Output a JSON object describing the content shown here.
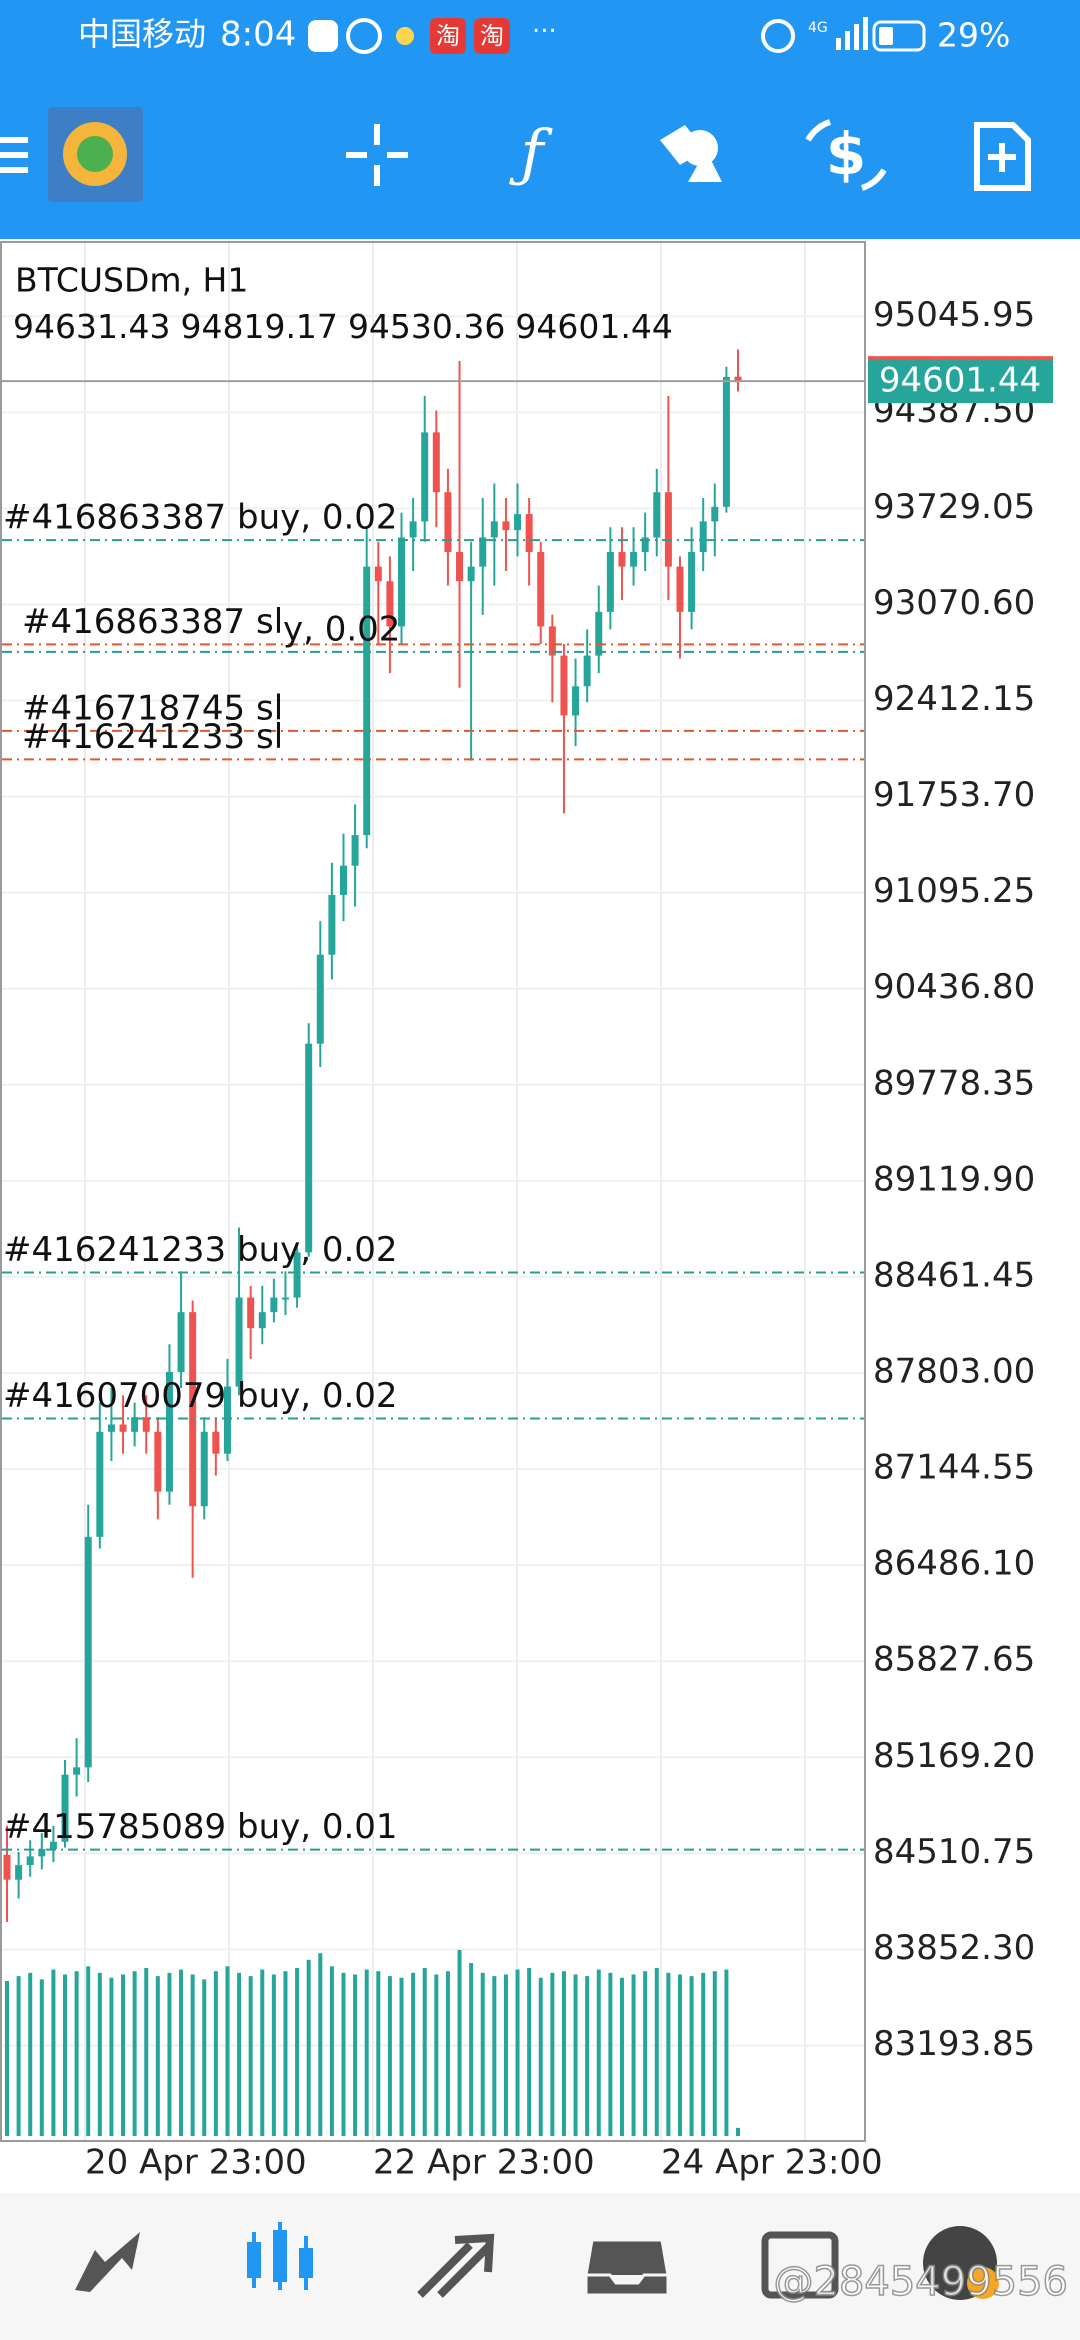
{
  "status_bar": {
    "carrier": "中国移动",
    "time": "8:04",
    "app_icons": [
      "淘",
      "淘"
    ],
    "network": "4G",
    "battery": "29%"
  },
  "chart": {
    "type": "candlestick",
    "symbol": "BTCUSDm, H1",
    "ohlc": [
      94631.43,
      94819.17,
      94530.36,
      94601.44
    ],
    "candles": [
      [
        84500,
        84700,
        84040,
        84330
      ],
      [
        84330,
        84520,
        84200,
        84430
      ],
      [
        84430,
        84600,
        84350,
        84490
      ],
      [
        84490,
        84650,
        84400,
        84540
      ],
      [
        84540,
        84700,
        84450,
        84590
      ],
      [
        84590,
        85150,
        84550,
        85050
      ],
      [
        85050,
        85300,
        84900,
        85100
      ],
      [
        85100,
        86900,
        85000,
        86680
      ],
      [
        86680,
        87600,
        86600,
        87400
      ],
      [
        87400,
        87700,
        87200,
        87450
      ],
      [
        87450,
        87650,
        87250,
        87400
      ],
      [
        87400,
        87600,
        87300,
        87500
      ],
      [
        87500,
        87650,
        87250,
        87400
      ],
      [
        87400,
        87500,
        86800,
        86990
      ],
      [
        86990,
        88000,
        86900,
        87810
      ],
      [
        87810,
        88500,
        87700,
        88220
      ],
      [
        88220,
        88300,
        86400,
        86890
      ],
      [
        86890,
        87500,
        86800,
        87400
      ],
      [
        87400,
        87500,
        87100,
        87250
      ],
      [
        87250,
        87900,
        87200,
        87710
      ],
      [
        87710,
        88800,
        87650,
        88320
      ],
      [
        88320,
        88400,
        87900,
        88110
      ],
      [
        88110,
        88400,
        88000,
        88220
      ],
      [
        88220,
        88450,
        88150,
        88320
      ],
      [
        88320,
        88500,
        88200,
        88320
      ],
      [
        88320,
        88700,
        88250,
        88630
      ],
      [
        88630,
        90200,
        88600,
        90060
      ],
      [
        90060,
        90900,
        89900,
        90670
      ],
      [
        90670,
        91300,
        90500,
        91080
      ],
      [
        91080,
        91500,
        90900,
        91280
      ],
      [
        91280,
        91700,
        91000,
        91490
      ],
      [
        91490,
        93600,
        91400,
        93330
      ],
      [
        93330,
        93500,
        92800,
        93230
      ],
      [
        93230,
        93400,
        92600,
        92920
      ],
      [
        92920,
        93700,
        92800,
        93530
      ],
      [
        93530,
        93800,
        93300,
        93640
      ],
      [
        93640,
        94500,
        93500,
        94250
      ],
      [
        94250,
        94400,
        93600,
        93840
      ],
      [
        93840,
        94000,
        93200,
        93430
      ],
      [
        93430,
        94740,
        92500,
        93230
      ],
      [
        93230,
        93500,
        92000,
        93330
      ],
      [
        93330,
        93800,
        93000,
        93530
      ],
      [
        93530,
        93900,
        93200,
        93640
      ],
      [
        93640,
        93800,
        93300,
        93580
      ],
      [
        93580,
        93900,
        93400,
        93690
      ],
      [
        93690,
        93800,
        93200,
        93430
      ],
      [
        93430,
        93500,
        92800,
        92920
      ],
      [
        92920,
        93000,
        92400,
        92720
      ],
      [
        92720,
        92800,
        91640,
        92310
      ],
      [
        92310,
        92700,
        92100,
        92510
      ],
      [
        92510,
        92900,
        92400,
        92720
      ],
      [
        92720,
        93200,
        92600,
        93020
      ],
      [
        93020,
        93600,
        92900,
        93430
      ],
      [
        93430,
        93600,
        93100,
        93330
      ],
      [
        93330,
        93600,
        93200,
        93430
      ],
      [
        93430,
        93700,
        93300,
        93530
      ],
      [
        93530,
        94000,
        93400,
        93840
      ],
      [
        93840,
        94500,
        93100,
        93330
      ],
      [
        93330,
        93400,
        92700,
        93020
      ],
      [
        93020,
        93600,
        92900,
        93430
      ],
      [
        93430,
        93800,
        93300,
        93640
      ],
      [
        93640,
        93900,
        93400,
        93740
      ],
      [
        93740,
        94700,
        93700,
        94630
      ]
    ],
    "volumes": [
      95,
      98,
      100,
      96,
      102,
      99,
      101,
      104,
      100,
      97,
      99,
      101,
      103,
      98,
      100,
      102,
      99,
      96,
      101,
      104,
      100,
      98,
      102,
      99,
      101,
      103,
      108,
      112,
      104,
      100,
      99,
      102,
      101,
      98,
      97,
      100,
      103,
      99,
      101,
      114,
      106,
      100,
      98,
      99,
      102,
      103,
      97,
      100,
      101,
      99,
      98,
      102,
      100,
      97,
      99,
      101,
      103,
      100,
      99,
      98,
      100,
      101,
      102,
      5
    ],
    "ylim": [
      82539,
      95555
    ],
    "yticks": [
      95045.95,
      {
        "value": 94387.5,
        "label": "94387.50"
      },
      93729.05,
      {
        "value": 93070.6,
        "label": "93070.60"
      },
      92412.15,
      {
        "value": 91753.7,
        "label": "91753.70"
      },
      91095.25,
      {
        "value": 90436.8,
        "label": "90436.80"
      },
      89778.35,
      {
        "value": 89119.9,
        "label": "89119.90"
      },
      88461.45,
      {
        "value": 87803,
        "label": "87803.00"
      },
      87144.55,
      {
        "value": 86486.1,
        "label": "86486.10"
      },
      85827.65,
      {
        "value": 85169.2,
        "label": "85169.20"
      },
      84510.75,
      {
        "value": 83852.3,
        "label": "83852.30"
      },
      83193.85
    ],
    "time_labels": [
      "20 Apr 23:00",
      "22 Apr 23:00",
      "24 Apr 23:00"
    ],
    "orders": [
      {
        "label": "#416863387 buy, 0.02",
        "price": 93512,
        "color": "#2a9d8f"
      },
      {
        "label": "#416863387 sl",
        "price": 92797,
        "color": "#e0592f"
      },
      {
        "label": "y, 0.02",
        "price": 92746,
        "color": "#2a9d8f"
      },
      {
        "label": "#416718745 sl",
        "price": 92204,
        "color": "#e0592f"
      },
      {
        "label": "#416241233 sl",
        "price": 92009,
        "color": "#e0592f"
      },
      {
        "label": "#416241233 buy, 0.02",
        "price": 88492,
        "color": "#2a9d8f"
      },
      {
        "label": "#416070079 buy, 0.02",
        "price": 87491,
        "color": "#2a9d8f"
      },
      {
        "label": "#415785089 buy, 0.01",
        "price": 84536,
        "color": "#2a9d8f"
      }
    ],
    "bull_color": "#26a69a",
    "bear_color": "#ef5350",
    "grid": true
  },
  "watermark": "@2845499556"
}
